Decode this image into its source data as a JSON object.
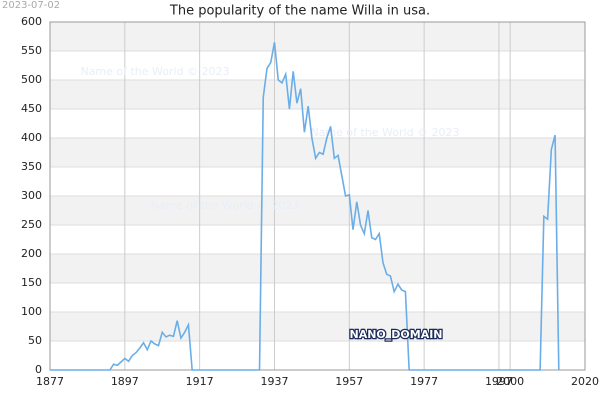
{
  "chart_data": {
    "type": "line",
    "title": "The popularity of the name Willa in usa.",
    "date_stamp": "2023-07-02",
    "watermarks": [
      "Name of the World © 2023",
      "Name of the World © 2023",
      "Name of the World © 2023"
    ],
    "badge": "NANO_DOMAIN",
    "x": [
      1877,
      1892,
      1893,
      1894,
      1895,
      1896,
      1897,
      1898,
      1899,
      1900,
      1901,
      1902,
      1903,
      1904,
      1905,
      1906,
      1907,
      1908,
      1909,
      1910,
      1911,
      1912,
      1913,
      1914,
      1915,
      1933,
      1934,
      1935,
      1936,
      1937,
      1938,
      1939,
      1940,
      1941,
      1942,
      1943,
      1944,
      1945,
      1946,
      1947,
      1948,
      1949,
      1950,
      1951,
      1952,
      1953,
      1954,
      1955,
      1956,
      1957,
      1958,
      1959,
      1960,
      1961,
      1962,
      1963,
      1964,
      1965,
      1966,
      1967,
      1968,
      1969,
      1970,
      1971,
      1972,
      1973,
      2008,
      2009,
      2010,
      2011,
      2012,
      2013
    ],
    "series": [
      {
        "name": "Willa",
        "color": "#6aaee8",
        "values": [
          0,
          0,
          0,
          10,
          8,
          14,
          20,
          15,
          25,
          30,
          38,
          47,
          35,
          50,
          45,
          42,
          65,
          57,
          60,
          58,
          85,
          55,
          65,
          78,
          0,
          0,
          470,
          520,
          530,
          565,
          500,
          495,
          510,
          450,
          515,
          460,
          485,
          410,
          455,
          400,
          365,
          375,
          372,
          400,
          420,
          365,
          370,
          335,
          300,
          302,
          242,
          290,
          250,
          235,
          275,
          228,
          225,
          235,
          185,
          165,
          162,
          135,
          148,
          138,
          135,
          0,
          0,
          265,
          260,
          380,
          405,
          0
        ]
      }
    ],
    "xlim": [
      1877,
      2020
    ],
    "xticks": [
      1877,
      1897,
      1917,
      1937,
      1957,
      1977,
      1997,
      2000,
      2020
    ],
    "ylim": [
      0,
      600
    ],
    "yticks": [
      0,
      50,
      100,
      150,
      200,
      250,
      300,
      350,
      400,
      450,
      500,
      550,
      600
    ],
    "grid": true
  }
}
